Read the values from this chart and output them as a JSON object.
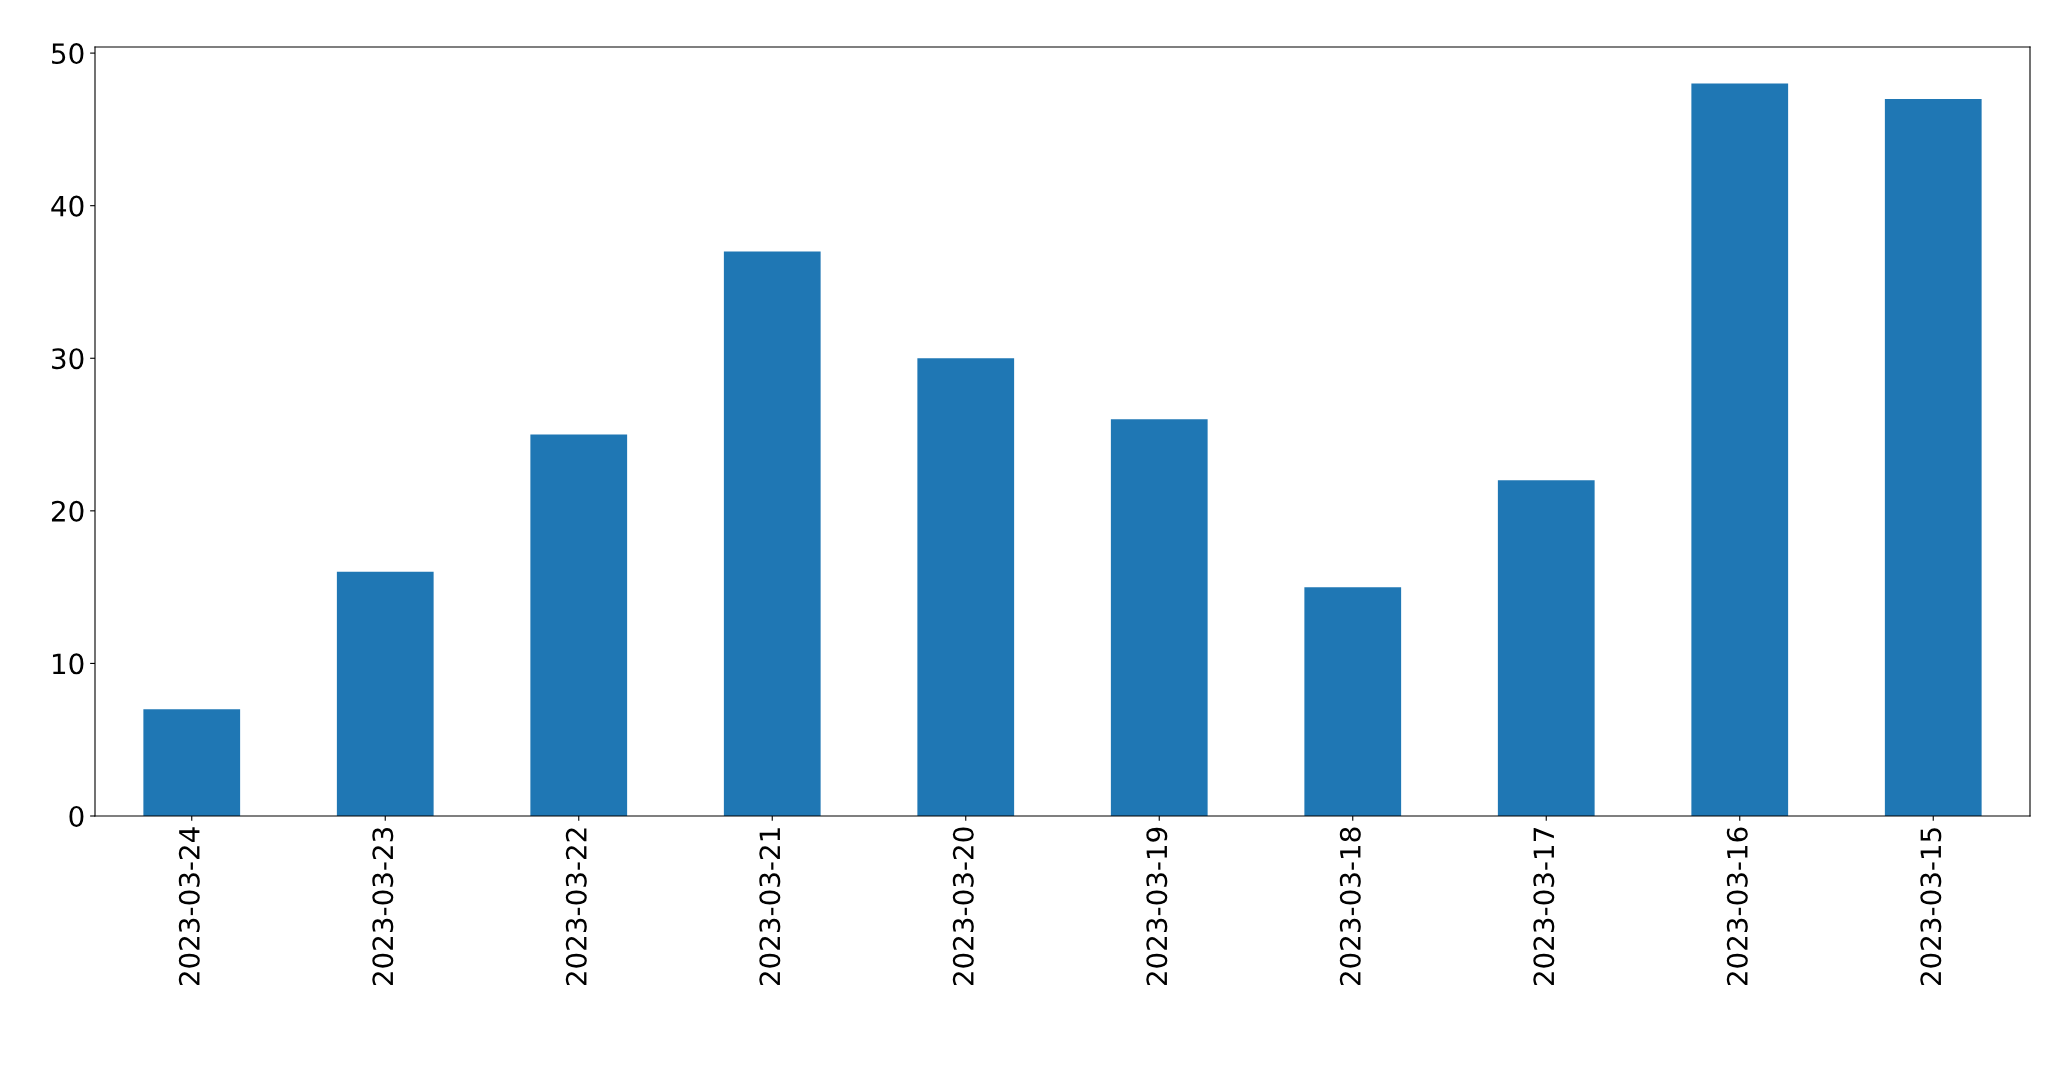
{
  "chart_data": {
    "type": "bar",
    "categories": [
      "2023-03-24",
      "2023-03-23",
      "2023-03-22",
      "2023-03-21",
      "2023-03-20",
      "2023-03-19",
      "2023-03-18",
      "2023-03-17",
      "2023-03-16",
      "2023-03-15"
    ],
    "values": [
      7,
      16,
      25,
      37,
      30,
      26,
      15,
      22,
      48,
      47
    ],
    "color": "#1f77b4",
    "ylim": [
      0,
      50.4
    ],
    "yticks": [
      0,
      10,
      20,
      30,
      40,
      50
    ],
    "grid": false,
    "legend": false
  }
}
